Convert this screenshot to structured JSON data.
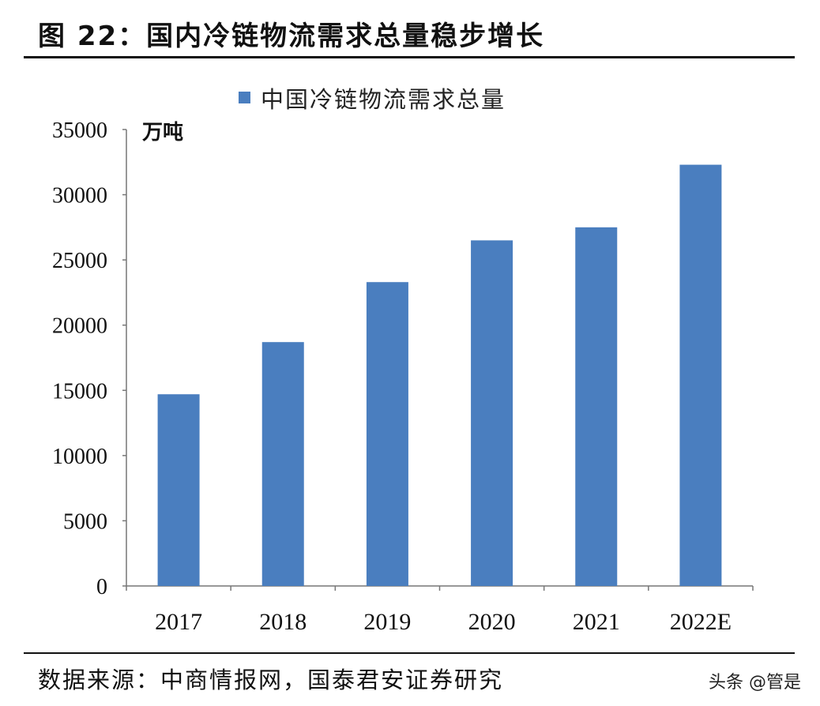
{
  "header": {
    "title": "图 22：国内冷链物流需求总量稳步增长"
  },
  "footer": {
    "source": "数据来源：中商情报网，国泰君安证券研究",
    "watermark": "头条 @管是"
  },
  "chart_data": {
    "type": "bar",
    "title": "",
    "xlabel": "",
    "ylabel": "万吨",
    "categories": [
      "2017",
      "2018",
      "2019",
      "2020",
      "2021",
      "2022E"
    ],
    "series": [
      {
        "name": "中国冷链物流需求总量",
        "values": [
          14700,
          18700,
          23300,
          26500,
          27500,
          32300
        ],
        "color": "#4a7ebf"
      }
    ],
    "ylim": [
      0,
      35000
    ],
    "yticks": [
      "0",
      "5000",
      "10000",
      "15000",
      "20000",
      "25000",
      "30000",
      "35000"
    ],
    "grid": false,
    "legend": "top"
  }
}
